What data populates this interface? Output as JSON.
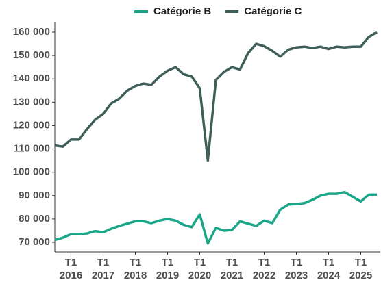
{
  "chart_data": {
    "type": "line",
    "categories": [
      null,
      null,
      "T1\n2016",
      null,
      null,
      null,
      "T1\n2017",
      null,
      null,
      null,
      "T1\n2018",
      null,
      null,
      null,
      "T1\n2019",
      null,
      null,
      null,
      "T1\n2020",
      null,
      null,
      null,
      "T1\n2021",
      null,
      null,
      null,
      "T1\n2022",
      null,
      null,
      null,
      "T1\n2023",
      null,
      null,
      null,
      "T1\n2024",
      null,
      null,
      null,
      "T1\n2025",
      null,
      null
    ],
    "series": [
      {
        "name": "Catégorie B",
        "color": "#1aa688",
        "values": [
          71,
          72,
          73.5,
          73.5,
          73.8,
          74.8,
          74.3,
          75.8,
          77,
          78,
          79,
          79,
          78.2,
          79.3,
          80,
          79.3,
          77.5,
          76.5,
          82,
          69.5,
          76.2,
          75,
          75.3,
          79,
          78,
          77,
          79.3,
          78.2,
          84,
          86.2,
          86.4,
          86.8,
          88.2,
          90,
          90.8,
          90.8,
          91.5,
          89.5,
          87.5,
          90.4,
          90.4
        ]
      },
      {
        "name": "Catégorie C",
        "color": "#3e5e59",
        "values": [
          111.5,
          111,
          114,
          114,
          118.5,
          122.5,
          125,
          129.5,
          131.5,
          135,
          137,
          138,
          137.5,
          141,
          143.5,
          145,
          142,
          141,
          136,
          105,
          139.5,
          143,
          145,
          144,
          151,
          155,
          154,
          152,
          149.5,
          152.5,
          153.5,
          153.8,
          153.2,
          153.8,
          152.8,
          153.8,
          153.5,
          153.8,
          153.8,
          158,
          160
        ]
      }
    ],
    "ylim": [
      65.9,
      164.4
    ],
    "yticks": [
      {
        "value": 70,
        "label": "70 000"
      },
      {
        "value": 80,
        "label": "80 000"
      },
      {
        "value": 90,
        "label": "90 000"
      },
      {
        "value": 100,
        "label": "100 000"
      },
      {
        "value": 110,
        "label": "110 000"
      },
      {
        "value": 120,
        "label": "120 000"
      },
      {
        "value": 130,
        "label": "130 000"
      },
      {
        "value": 140,
        "label": "140 000"
      },
      {
        "value": 150,
        "label": "150 000"
      },
      {
        "value": 160,
        "label": "160 000"
      }
    ],
    "legend": "top"
  }
}
